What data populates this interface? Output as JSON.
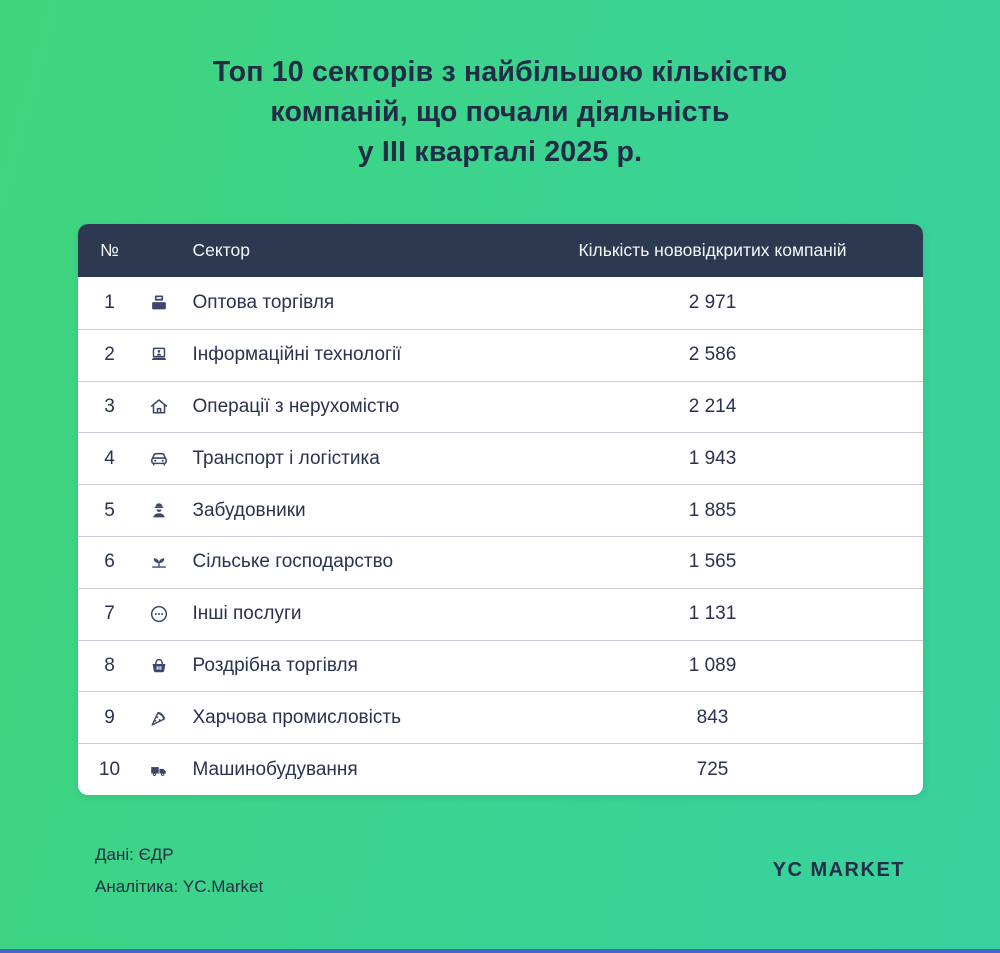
{
  "title": {
    "lines": [
      "Топ 10 секторів з найбільшою кількістю",
      "компаній, що почали діяльність",
      "у III кварталі 2025 р."
    ]
  },
  "table": {
    "columns": {
      "num": "№",
      "sector": "Сектор",
      "count": "Кількість нововідкритих компаній"
    },
    "rows": [
      {
        "rank": "1",
        "icon": "wholesale-boxes-icon",
        "sector": "Оптова торгівля",
        "count": "2 971"
      },
      {
        "rank": "2",
        "icon": "it-laptop-icon",
        "sector": "Інформаційні технології",
        "count": "2 586"
      },
      {
        "rank": "3",
        "icon": "house-icon",
        "sector": "Операції з нерухомістю",
        "count": "2 214"
      },
      {
        "rank": "4",
        "icon": "car-icon",
        "sector": "Транспорт і логістика",
        "count": "1 943"
      },
      {
        "rank": "5",
        "icon": "construction-worker-icon",
        "sector": "Забудовники",
        "count": "1 885"
      },
      {
        "rank": "6",
        "icon": "sprout-icon",
        "sector": "Сільське господарство",
        "count": "1 565"
      },
      {
        "rank": "7",
        "icon": "ellipsis-circle-icon",
        "sector": "Інші послуги",
        "count": "1 131"
      },
      {
        "rank": "8",
        "icon": "shopping-basket-icon",
        "sector": "Роздрібна торгівля",
        "count": "1 089"
      },
      {
        "rank": "9",
        "icon": "pizza-icon",
        "sector": "Харчова промисловість",
        "count": "843"
      },
      {
        "rank": "10",
        "icon": "truck-icon",
        "sector": "Машинобудування",
        "count": "725"
      }
    ]
  },
  "footer": {
    "source": "Дані: ЄДР",
    "analytics": "Аналітика: YC.Market",
    "brand": "YC MARKET"
  },
  "colors": {
    "background_start": "#40d57c",
    "background_end": "#38d19e",
    "header_bg": "#2d3950",
    "text_dark": "#212c47",
    "row_border": "#c9ced8",
    "icon_color": "#3c486b",
    "bottom_bar": "#4565c8"
  },
  "chart_data": {
    "type": "table",
    "title": "Топ 10 секторів з найбільшою кількістю компаній, що почали діяльність у III кварталі 2025 р.",
    "categories": [
      "Оптова торгівля",
      "Інформаційні технології",
      "Операції з нерухомістю",
      "Транспорт і логістика",
      "Забудовники",
      "Сільське господарство",
      "Інші послуги",
      "Роздрібна торгівля",
      "Харчова промисловість",
      "Машинобудування"
    ],
    "values": [
      2971,
      2586,
      2214,
      1943,
      1885,
      1565,
      1131,
      1089,
      843,
      725
    ],
    "xlabel": "Сектор",
    "ylabel": "Кількість нововідкритих компаній"
  }
}
